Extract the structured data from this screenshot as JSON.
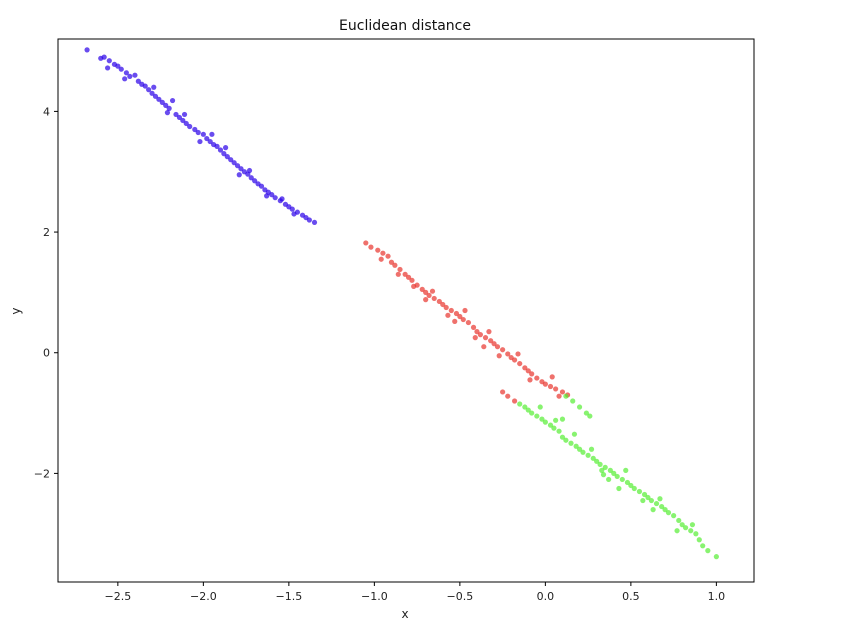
{
  "chart_data": {
    "type": "scatter",
    "title": "Euclidean distance",
    "xlabel": "x",
    "ylabel": "y",
    "xlim": [
      -2.85,
      1.22
    ],
    "ylim": [
      -3.8,
      5.2
    ],
    "xticks": [
      -2.5,
      -2.0,
      -1.5,
      -1.0,
      -0.5,
      0.0,
      0.5,
      1.0
    ],
    "xtick_labels": [
      "−2.5",
      "−2.0",
      "−1.5",
      "−1.0",
      "−0.5",
      "0.0",
      "0.5",
      "1.0"
    ],
    "yticks": [
      -2,
      0,
      2,
      4
    ],
    "ytick_labels": [
      "−2",
      "0",
      "2",
      "4"
    ],
    "grid": false,
    "legend": "none",
    "series": [
      {
        "name": "cluster-blue",
        "color": "#2a00e8",
        "points": [
          [
            -2.68,
            5.02
          ],
          [
            -2.6,
            4.88
          ],
          [
            -2.58,
            4.9
          ],
          [
            -2.55,
            4.84
          ],
          [
            -2.52,
            4.78
          ],
          [
            -2.5,
            4.75
          ],
          [
            -2.48,
            4.7
          ],
          [
            -2.45,
            4.64
          ],
          [
            -2.43,
            4.58
          ],
          [
            -2.4,
            4.6
          ],
          [
            -2.38,
            4.5
          ],
          [
            -2.36,
            4.45
          ],
          [
            -2.34,
            4.42
          ],
          [
            -2.32,
            4.36
          ],
          [
            -2.3,
            4.3
          ],
          [
            -2.28,
            4.25
          ],
          [
            -2.26,
            4.2
          ],
          [
            -2.24,
            4.15
          ],
          [
            -2.22,
            4.1
          ],
          [
            -2.2,
            4.05
          ],
          [
            -2.18,
            4.18
          ],
          [
            -2.16,
            3.95
          ],
          [
            -2.14,
            3.9
          ],
          [
            -2.12,
            3.85
          ],
          [
            -2.1,
            3.8
          ],
          [
            -2.08,
            3.75
          ],
          [
            -2.05,
            3.7
          ],
          [
            -2.03,
            3.65
          ],
          [
            -2.0,
            3.62
          ],
          [
            -1.98,
            3.55
          ],
          [
            -1.96,
            3.5
          ],
          [
            -1.94,
            3.45
          ],
          [
            -1.92,
            3.42
          ],
          [
            -1.9,
            3.36
          ],
          [
            -1.88,
            3.3
          ],
          [
            -1.86,
            3.25
          ],
          [
            -1.84,
            3.2
          ],
          [
            -1.82,
            3.15
          ],
          [
            -1.8,
            3.1
          ],
          [
            -1.78,
            3.05
          ],
          [
            -1.76,
            3.0
          ],
          [
            -1.74,
            2.96
          ],
          [
            -1.72,
            2.9
          ],
          [
            -1.7,
            2.85
          ],
          [
            -1.68,
            2.8
          ],
          [
            -1.66,
            2.76
          ],
          [
            -1.64,
            2.7
          ],
          [
            -1.62,
            2.66
          ],
          [
            -1.6,
            2.62
          ],
          [
            -1.58,
            2.57
          ],
          [
            -1.55,
            2.52
          ],
          [
            -1.52,
            2.46
          ],
          [
            -1.5,
            2.42
          ],
          [
            -1.48,
            2.38
          ],
          [
            -1.45,
            2.33
          ],
          [
            -1.42,
            2.28
          ],
          [
            -1.4,
            2.24
          ],
          [
            -1.38,
            2.2
          ],
          [
            -1.35,
            2.16
          ],
          [
            -2.56,
            4.72
          ],
          [
            -2.46,
            4.54
          ],
          [
            -2.29,
            4.4
          ],
          [
            -2.21,
            3.98
          ],
          [
            -2.11,
            3.95
          ],
          [
            -2.02,
            3.5
          ],
          [
            -1.95,
            3.62
          ],
          [
            -1.87,
            3.4
          ],
          [
            -1.79,
            2.95
          ],
          [
            -1.73,
            3.02
          ],
          [
            -1.63,
            2.6
          ],
          [
            -1.54,
            2.55
          ],
          [
            -1.47,
            2.3
          ]
        ]
      },
      {
        "name": "cluster-red",
        "color": "#e8352e",
        "points": [
          [
            -1.05,
            1.82
          ],
          [
            -1.02,
            1.75
          ],
          [
            -0.98,
            1.7
          ],
          [
            -0.95,
            1.65
          ],
          [
            -0.92,
            1.6
          ],
          [
            -0.9,
            1.5
          ],
          [
            -0.88,
            1.45
          ],
          [
            -0.85,
            1.38
          ],
          [
            -0.82,
            1.3
          ],
          [
            -0.8,
            1.25
          ],
          [
            -0.78,
            1.2
          ],
          [
            -0.75,
            1.12
          ],
          [
            -0.72,
            1.05
          ],
          [
            -0.7,
            1.0
          ],
          [
            -0.68,
            0.95
          ],
          [
            -0.65,
            0.9
          ],
          [
            -0.62,
            0.85
          ],
          [
            -0.6,
            0.8
          ],
          [
            -0.58,
            0.75
          ],
          [
            -0.55,
            0.7
          ],
          [
            -0.52,
            0.65
          ],
          [
            -0.5,
            0.6
          ],
          [
            -0.48,
            0.55
          ],
          [
            -0.45,
            0.5
          ],
          [
            -0.42,
            0.42
          ],
          [
            -0.4,
            0.35
          ],
          [
            -0.38,
            0.3
          ],
          [
            -0.35,
            0.25
          ],
          [
            -0.32,
            0.2
          ],
          [
            -0.3,
            0.15
          ],
          [
            -0.28,
            0.1
          ],
          [
            -0.25,
            0.05
          ],
          [
            -0.22,
            -0.02
          ],
          [
            -0.2,
            -0.08
          ],
          [
            -0.18,
            -0.12
          ],
          [
            -0.15,
            -0.18
          ],
          [
            -0.12,
            -0.25
          ],
          [
            -0.1,
            -0.3
          ],
          [
            -0.08,
            -0.35
          ],
          [
            -0.05,
            -0.42
          ],
          [
            -0.02,
            -0.48
          ],
          [
            0.0,
            -0.52
          ],
          [
            0.03,
            -0.56
          ],
          [
            0.06,
            -0.6
          ],
          [
            0.1,
            -0.65
          ],
          [
            0.13,
            -0.7
          ],
          [
            -0.25,
            -0.65
          ],
          [
            -0.22,
            -0.72
          ],
          [
            -0.18,
            -0.8
          ],
          [
            -0.96,
            1.55
          ],
          [
            -0.86,
            1.3
          ],
          [
            -0.77,
            1.1
          ],
          [
            -0.66,
            1.02
          ],
          [
            -0.57,
            0.62
          ],
          [
            -0.47,
            0.7
          ],
          [
            -0.41,
            0.25
          ],
          [
            -0.33,
            0.35
          ],
          [
            -0.27,
            -0.05
          ],
          [
            -0.16,
            -0.02
          ],
          [
            -0.09,
            -0.45
          ],
          [
            0.04,
            -0.4
          ],
          [
            0.08,
            -0.72
          ],
          [
            -0.7,
            0.88
          ],
          [
            -0.53,
            0.52
          ],
          [
            -0.36,
            0.1
          ]
        ]
      },
      {
        "name": "cluster-green",
        "color": "#55ee33",
        "points": [
          [
            -0.15,
            -0.85
          ],
          [
            -0.12,
            -0.9
          ],
          [
            -0.1,
            -0.95
          ],
          [
            -0.08,
            -1.0
          ],
          [
            -0.05,
            -1.05
          ],
          [
            -0.02,
            -1.1
          ],
          [
            0.0,
            -1.15
          ],
          [
            0.03,
            -1.2
          ],
          [
            0.05,
            -1.25
          ],
          [
            0.08,
            -1.3
          ],
          [
            0.1,
            -1.4
          ],
          [
            0.12,
            -1.45
          ],
          [
            0.15,
            -1.5
          ],
          [
            0.18,
            -1.55
          ],
          [
            0.2,
            -1.6
          ],
          [
            0.22,
            -1.65
          ],
          [
            0.25,
            -1.7
          ],
          [
            0.28,
            -1.75
          ],
          [
            0.3,
            -1.8
          ],
          [
            0.32,
            -1.85
          ],
          [
            0.35,
            -1.9
          ],
          [
            0.38,
            -1.95
          ],
          [
            0.4,
            -2.0
          ],
          [
            0.42,
            -2.05
          ],
          [
            0.45,
            -2.1
          ],
          [
            0.48,
            -2.15
          ],
          [
            0.5,
            -2.2
          ],
          [
            0.52,
            -2.25
          ],
          [
            0.55,
            -2.3
          ],
          [
            0.58,
            -2.35
          ],
          [
            0.6,
            -2.4
          ],
          [
            0.62,
            -2.45
          ],
          [
            0.65,
            -2.5
          ],
          [
            0.68,
            -2.55
          ],
          [
            0.7,
            -2.6
          ],
          [
            0.72,
            -2.65
          ],
          [
            0.75,
            -2.7
          ],
          [
            0.78,
            -2.78
          ],
          [
            0.8,
            -2.85
          ],
          [
            0.82,
            -2.9
          ],
          [
            0.85,
            -2.95
          ],
          [
            0.88,
            -3.0
          ],
          [
            0.9,
            -3.1
          ],
          [
            0.92,
            -3.2
          ],
          [
            0.95,
            -3.28
          ],
          [
            1.0,
            -3.38
          ],
          [
            0.12,
            -0.72
          ],
          [
            0.16,
            -0.8
          ],
          [
            0.2,
            -0.9
          ],
          [
            0.24,
            -1.0
          ],
          [
            0.26,
            -1.05
          ],
          [
            0.06,
            -1.12
          ],
          [
            0.17,
            -1.35
          ],
          [
            0.27,
            -1.6
          ],
          [
            0.37,
            -2.1
          ],
          [
            0.47,
            -1.95
          ],
          [
            0.57,
            -2.45
          ],
          [
            0.67,
            -2.42
          ],
          [
            0.77,
            -2.95
          ],
          [
            0.86,
            -2.85
          ],
          [
            0.33,
            -1.95
          ],
          [
            0.43,
            -2.25
          ],
          [
            0.63,
            -2.6
          ],
          [
            -0.03,
            -0.9
          ],
          [
            0.1,
            -1.1
          ],
          [
            0.34,
            -2.02
          ]
        ]
      }
    ]
  }
}
